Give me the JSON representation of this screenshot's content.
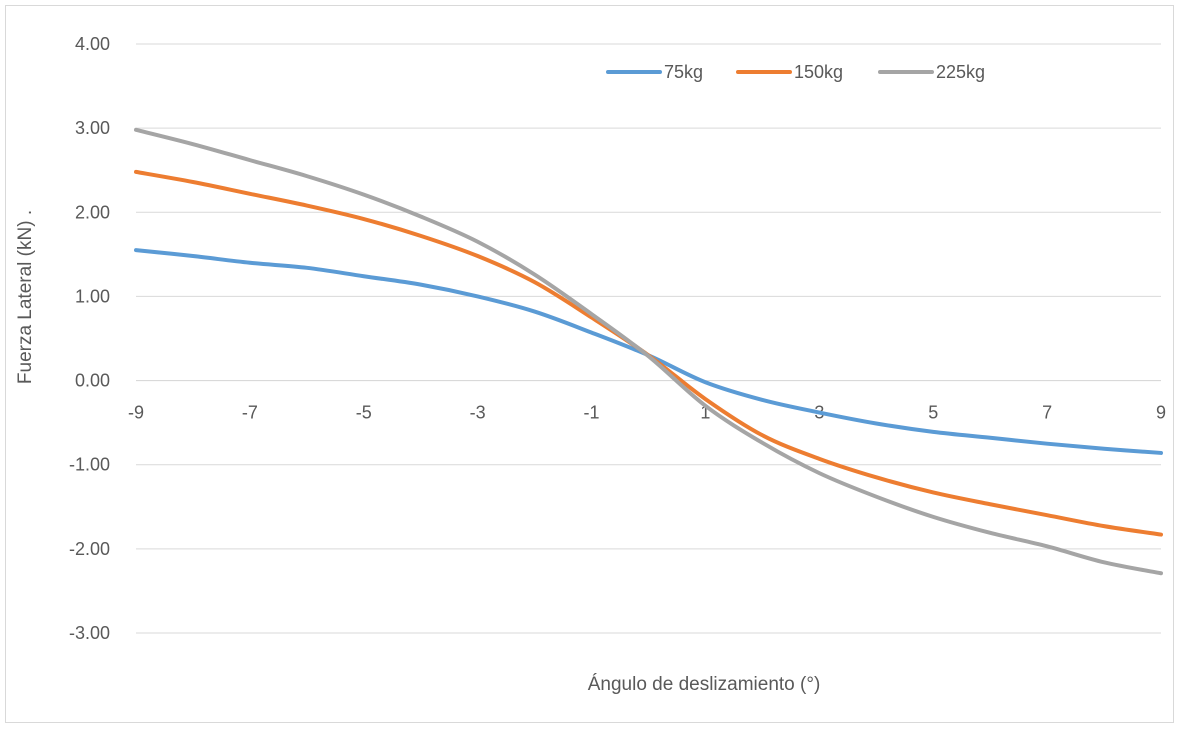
{
  "chart_data": {
    "type": "line",
    "title": "",
    "xlabel": "Ángulo de deslizamiento (°)",
    "ylabel": "Fuerza Lateral (kN) .",
    "xlim": [
      -9,
      9
    ],
    "ylim": [
      -3,
      4
    ],
    "x_ticks": [
      "-9",
      "-7",
      "-5",
      "-3",
      "-1",
      "1",
      "3",
      "5",
      "7",
      "9"
    ],
    "y_ticks": [
      "4.00",
      "3.00",
      "2.00",
      "1.00",
      "0.00",
      "-1.00",
      "-2.00",
      "-3.00"
    ],
    "grid": true,
    "legend_position": "top-right",
    "x": [
      -9,
      -8,
      -7,
      -6,
      -5,
      -4,
      -3,
      -2,
      -1,
      0,
      1,
      2,
      3,
      4,
      5,
      6,
      7,
      8,
      9
    ],
    "series": [
      {
        "name": "75kg",
        "color": "#5b9bd5",
        "values": [
          1.55,
          1.48,
          1.4,
          1.34,
          1.24,
          1.14,
          1.0,
          0.82,
          0.57,
          0.3,
          -0.02,
          -0.23,
          -0.38,
          -0.51,
          -0.61,
          -0.68,
          -0.75,
          -0.81,
          -0.86
        ]
      },
      {
        "name": "150kg",
        "color": "#ed7d31",
        "values": [
          2.48,
          2.36,
          2.22,
          2.08,
          1.92,
          1.72,
          1.48,
          1.17,
          0.75,
          0.3,
          -0.22,
          -0.65,
          -0.93,
          -1.15,
          -1.33,
          -1.47,
          -1.6,
          -1.73,
          -1.83
        ]
      },
      {
        "name": "225kg",
        "color": "#a5a5a5",
        "values": [
          2.98,
          2.81,
          2.62,
          2.43,
          2.21,
          1.95,
          1.65,
          1.26,
          0.79,
          0.29,
          -0.3,
          -0.74,
          -1.1,
          -1.38,
          -1.62,
          -1.81,
          -1.97,
          -2.16,
          -2.29
        ]
      }
    ]
  }
}
